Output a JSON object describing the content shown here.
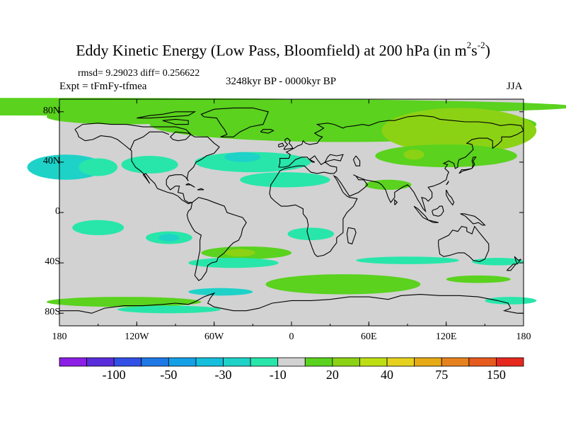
{
  "figure": {
    "title_main": "Eddy Kinetic Energy (Low Pass, Bloomfield) at 200 hPa (in m",
    "title_sup1": "2",
    "title_mid": "s",
    "title_sup2": "-2",
    "title_end": ")",
    "stats": "rmsd= 9.29023 diff= 0.256622",
    "experiment": "Expt = tFmFy-tfmea",
    "period": "3248kyr BP - 0000kyr BP",
    "season": "JJA"
  },
  "map": {
    "projection": "cylindrical-equidistant",
    "lon_range": [
      -180,
      180
    ],
    "lat_range": [
      -90,
      90
    ],
    "lat_ticks": [
      {
        "value": 80,
        "label": "80N"
      },
      {
        "value": 40,
        "label": "40N"
      },
      {
        "value": 0,
        "label": "0"
      },
      {
        "value": -40,
        "label": "40S"
      },
      {
        "value": -80,
        "label": "80S"
      }
    ],
    "lon_ticks": [
      {
        "value": -180,
        "label": "180"
      },
      {
        "value": -120,
        "label": "120W"
      },
      {
        "value": -60,
        "label": "60W"
      },
      {
        "value": 0,
        "label": "0"
      },
      {
        "value": 60,
        "label": "60E"
      },
      {
        "value": 120,
        "label": "120E"
      },
      {
        "value": 180,
        "label": "180"
      }
    ],
    "background_color": "#d2d2d2",
    "coastline_color": "#000000"
  },
  "colorbar": {
    "colors": [
      "#8c1ee6",
      "#5a2ddc",
      "#3250e6",
      "#1e78e6",
      "#14a0e6",
      "#14bedc",
      "#1ed2c8",
      "#28e6aa",
      "#d2d2d2",
      "#5ad21e",
      "#8cd214",
      "#bede14",
      "#e6d21e",
      "#e6aa14",
      "#e6821e",
      "#e65a1e",
      "#e6281e"
    ],
    "labels": [
      {
        "index": 2,
        "text": "-100"
      },
      {
        "index": 4,
        "text": "-50"
      },
      {
        "index": 6,
        "text": "-30"
      },
      {
        "index": 8,
        "text": "-10"
      },
      {
        "index": 10,
        "text": "20"
      },
      {
        "index": 12,
        "text": "40"
      },
      {
        "index": 14,
        "text": "75"
      },
      {
        "index": 16,
        "text": "150"
      }
    ]
  },
  "fill_colors": {
    "green": "#5ad21e",
    "lime": "#8cd214",
    "cyan": "#28e6aa",
    "teal": "#1ed2c8",
    "blue": "#14bedc"
  }
}
